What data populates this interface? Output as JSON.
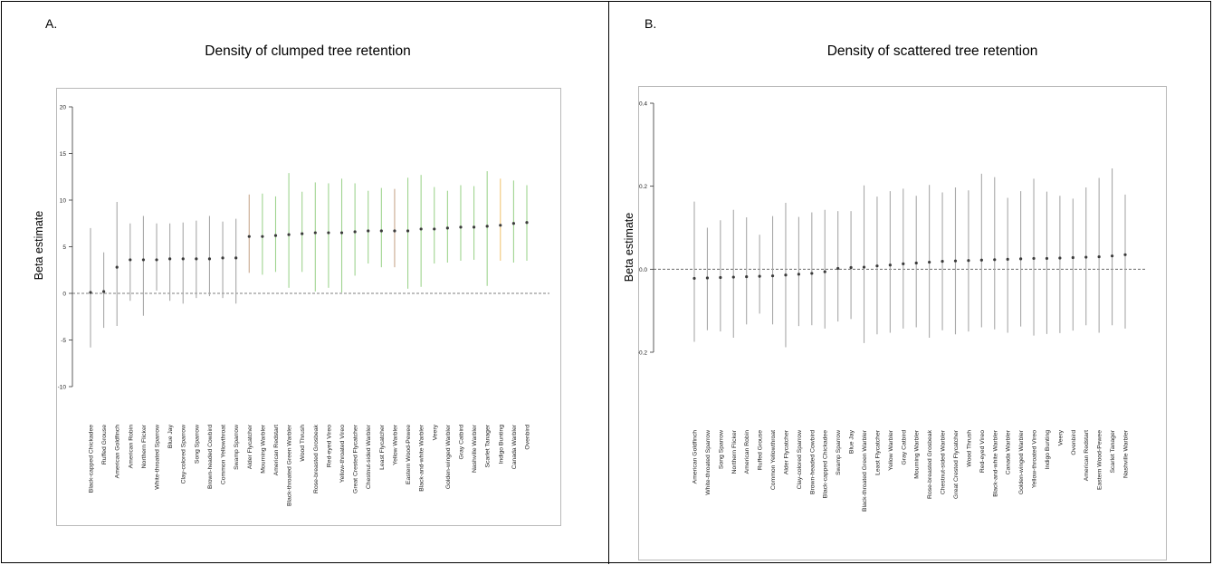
{
  "panels": [
    {
      "letter": "A.",
      "title": "Density of clumped tree retention",
      "chart_data": {
        "type": "scatter",
        "subtype": "coefficient point estimates with interval bars",
        "title": "Density of clumped tree retention",
        "xlabel": "",
        "ylabel": "Beta estimate",
        "ylim": [
          -10,
          20
        ],
        "yticks": [
          -10,
          -5,
          0,
          5,
          10,
          15,
          20
        ],
        "reference_line": 0,
        "grid": false,
        "points": [
          {
            "label": "Black-capped Chickadee",
            "est": 0.1,
            "lo": -5.8,
            "hi": 7.0,
            "color": "#a8a8a8"
          },
          {
            "label": "Ruffed Grouse",
            "est": 0.2,
            "lo": -3.7,
            "hi": 4.4,
            "color": "#a8a8a8"
          },
          {
            "label": "American Goldfinch",
            "est": 2.8,
            "lo": -3.5,
            "hi": 9.8,
            "color": "#a8a8a8"
          },
          {
            "label": "American Robin",
            "est": 3.6,
            "lo": -0.8,
            "hi": 7.5,
            "color": "#a8a8a8"
          },
          {
            "label": "Northern Flicker",
            "est": 3.6,
            "lo": -2.4,
            "hi": 8.3,
            "color": "#a8a8a8"
          },
          {
            "label": "White-throated Sparrow",
            "est": 3.6,
            "lo": 0.3,
            "hi": 7.5,
            "color": "#a8a8a8"
          },
          {
            "label": "Blue Jay",
            "est": 3.7,
            "lo": -0.8,
            "hi": 7.5,
            "color": "#a8a8a8"
          },
          {
            "label": "Clay-colored Sparrow",
            "est": 3.7,
            "lo": -1.1,
            "hi": 7.6,
            "color": "#a8a8a8"
          },
          {
            "label": "Song Sparrow",
            "est": 3.7,
            "lo": -0.5,
            "hi": 7.8,
            "color": "#a8a8a8"
          },
          {
            "label": "Brown-headed Cowbird",
            "est": 3.7,
            "lo": -0.3,
            "hi": 8.3,
            "color": "#a8a8a8"
          },
          {
            "label": "Common Yellowthroat",
            "est": 3.8,
            "lo": -0.5,
            "hi": 7.7,
            "color": "#a8a8a8"
          },
          {
            "label": "Swamp Sparrow",
            "est": 3.8,
            "lo": -1.1,
            "hi": 8.0,
            "color": "#a8a8a8"
          },
          {
            "label": "Alder Flycatcher",
            "est": 6.1,
            "lo": 2.2,
            "hi": 10.6,
            "color": "#c9a88f"
          },
          {
            "label": "Mourning Warbler",
            "est": 6.1,
            "lo": 2.0,
            "hi": 10.7,
            "color": "#9fd48f"
          },
          {
            "label": "American Redstart",
            "est": 6.2,
            "lo": 2.3,
            "hi": 10.4,
            "color": "#9fd48f"
          },
          {
            "label": "Black-throated Green Warbler",
            "est": 6.3,
            "lo": 0.6,
            "hi": 12.9,
            "color": "#9fd48f"
          },
          {
            "label": "Wood Thrush",
            "est": 6.4,
            "lo": 2.3,
            "hi": 10.9,
            "color": "#9fd48f"
          },
          {
            "label": "Rose-breasted Grosbeak",
            "est": 6.5,
            "lo": 0.2,
            "hi": 11.9,
            "color": "#9fd48f"
          },
          {
            "label": "Red-eyed Vireo",
            "est": 6.5,
            "lo": 0.6,
            "hi": 11.8,
            "color": "#9fd48f"
          },
          {
            "label": "Yellow-throated Vireo",
            "est": 6.5,
            "lo": 0.1,
            "hi": 12.3,
            "color": "#9fd48f"
          },
          {
            "label": "Great Crested Flycatcher",
            "est": 6.6,
            "lo": 1.9,
            "hi": 11.8,
            "color": "#9fd48f"
          },
          {
            "label": "Chestnut-sided Warbler",
            "est": 6.7,
            "lo": 3.2,
            "hi": 11.0,
            "color": "#9fd48f"
          },
          {
            "label": "Least Flycatcher",
            "est": 6.7,
            "lo": 2.8,
            "hi": 11.3,
            "color": "#9fd48f"
          },
          {
            "label": "Yellow Warbler",
            "est": 6.7,
            "lo": 2.8,
            "hi": 11.2,
            "color": "#c9a88f"
          },
          {
            "label": "Eastern Wood-Pewee",
            "est": 6.7,
            "lo": 0.5,
            "hi": 12.4,
            "color": "#9fd48f"
          },
          {
            "label": "Black-and-white Warbler",
            "est": 6.9,
            "lo": 0.7,
            "hi": 12.7,
            "color": "#9fd48f"
          },
          {
            "label": "Veery",
            "est": 6.9,
            "lo": 3.2,
            "hi": 11.4,
            "color": "#9fd48f"
          },
          {
            "label": "Golden-winged Warbler",
            "est": 7.0,
            "lo": 3.3,
            "hi": 11.0,
            "color": "#9fd48f"
          },
          {
            "label": "Gray Catbird",
            "est": 7.1,
            "lo": 3.5,
            "hi": 11.6,
            "color": "#9fd48f"
          },
          {
            "label": "Nashville Warbler",
            "est": 7.1,
            "lo": 3.6,
            "hi": 11.5,
            "color": "#9fd48f"
          },
          {
            "label": "Scarlet Tanager",
            "est": 7.2,
            "lo": 0.8,
            "hi": 13.1,
            "color": "#9fd48f"
          },
          {
            "label": "Indigo Bunting",
            "est": 7.3,
            "lo": 3.5,
            "hi": 12.3,
            "color": "#f2c777"
          },
          {
            "label": "Canada Warbler",
            "est": 7.5,
            "lo": 3.3,
            "hi": 12.1,
            "color": "#9fd48f"
          },
          {
            "label": "Ovenbird",
            "est": 7.6,
            "lo": 3.5,
            "hi": 11.6,
            "color": "#9fd48f"
          }
        ]
      }
    },
    {
      "letter": "B.",
      "title": "Density of scattered tree retention",
      "chart_data": {
        "type": "scatter",
        "subtype": "coefficient point estimates with interval bars",
        "title": "Density of scattered tree retention",
        "xlabel": "",
        "ylabel": "Beta estimate",
        "ylim": [
          -0.2,
          0.4
        ],
        "yticks": [
          -0.2,
          0.0,
          0.2,
          0.4
        ],
        "reference_line": 0,
        "grid": false,
        "points": [
          {
            "label": "American Goldfinch",
            "est": -0.022,
            "lo": -0.175,
            "hi": 0.163,
            "color": "#a8a8a8"
          },
          {
            "label": "White-throated Sparrow",
            "est": -0.021,
            "lo": -0.147,
            "hi": 0.1,
            "color": "#a8a8a8"
          },
          {
            "label": "Song Sparrow",
            "est": -0.02,
            "lo": -0.15,
            "hi": 0.118,
            "color": "#a8a8a8"
          },
          {
            "label": "Northern Flicker",
            "est": -0.019,
            "lo": -0.165,
            "hi": 0.143,
            "color": "#a8a8a8"
          },
          {
            "label": "American Robin",
            "est": -0.018,
            "lo": -0.133,
            "hi": 0.125,
            "color": "#a8a8a8"
          },
          {
            "label": "Ruffed Grouse",
            "est": -0.017,
            "lo": -0.107,
            "hi": 0.083,
            "color": "#a8a8a8"
          },
          {
            "label": "Common Yellowthroat",
            "est": -0.016,
            "lo": -0.133,
            "hi": 0.128,
            "color": "#a8a8a8"
          },
          {
            "label": "Alder Flycatcher",
            "est": -0.014,
            "lo": -0.188,
            "hi": 0.16,
            "color": "#a8a8a8"
          },
          {
            "label": "Clay-colored Sparrow",
            "est": -0.012,
            "lo": -0.137,
            "hi": 0.126,
            "color": "#a8a8a8"
          },
          {
            "label": "Brown-headed Cowbird",
            "est": -0.01,
            "lo": -0.135,
            "hi": 0.137,
            "color": "#a8a8a8"
          },
          {
            "label": "Black-capped Chickadee",
            "est": -0.006,
            "lo": -0.143,
            "hi": 0.143,
            "color": "#a8a8a8"
          },
          {
            "label": "Swamp Sparrow",
            "est": 0.002,
            "lo": -0.126,
            "hi": 0.14,
            "color": "#a8a8a8"
          },
          {
            "label": "Blue Jay",
            "est": 0.004,
            "lo": -0.12,
            "hi": 0.14,
            "color": "#a8a8a8"
          },
          {
            "label": "Black-throated Green Warbler",
            "est": 0.005,
            "lo": -0.178,
            "hi": 0.202,
            "color": "#a8a8a8"
          },
          {
            "label": "Least Flycatcher",
            "est": 0.008,
            "lo": -0.157,
            "hi": 0.175,
            "color": "#a8a8a8"
          },
          {
            "label": "Yellow Warbler",
            "est": 0.01,
            "lo": -0.153,
            "hi": 0.188,
            "color": "#a8a8a8"
          },
          {
            "label": "Gray Catbird",
            "est": 0.013,
            "lo": -0.143,
            "hi": 0.194,
            "color": "#a8a8a8"
          },
          {
            "label": "Mourning Warbler",
            "est": 0.015,
            "lo": -0.14,
            "hi": 0.177,
            "color": "#a8a8a8"
          },
          {
            "label": "Rose-breasted Grosbeak",
            "est": 0.017,
            "lo": -0.165,
            "hi": 0.203,
            "color": "#a8a8a8"
          },
          {
            "label": "Chestnut-sided Warbler",
            "est": 0.019,
            "lo": -0.147,
            "hi": 0.185,
            "color": "#a8a8a8"
          },
          {
            "label": "Great Crested Flycatcher",
            "est": 0.02,
            "lo": -0.157,
            "hi": 0.197,
            "color": "#a8a8a8"
          },
          {
            "label": "Wood Thrush",
            "est": 0.021,
            "lo": -0.15,
            "hi": 0.19,
            "color": "#a8a8a8"
          },
          {
            "label": "Red-eyed Vireo",
            "est": 0.022,
            "lo": -0.14,
            "hi": 0.23,
            "color": "#a8a8a8"
          },
          {
            "label": "Black-and-white Warbler",
            "est": 0.023,
            "lo": -0.145,
            "hi": 0.222,
            "color": "#a8a8a8"
          },
          {
            "label": "Canada Warbler",
            "est": 0.024,
            "lo": -0.153,
            "hi": 0.172,
            "color": "#a8a8a8"
          },
          {
            "label": "Golden-winged Warbler",
            "est": 0.025,
            "lo": -0.138,
            "hi": 0.188,
            "color": "#a8a8a8"
          },
          {
            "label": "Yellow-throated Vireo",
            "est": 0.026,
            "lo": -0.16,
            "hi": 0.218,
            "color": "#a8a8a8"
          },
          {
            "label": "Indigo Bunting",
            "est": 0.026,
            "lo": -0.156,
            "hi": 0.187,
            "color": "#a8a8a8"
          },
          {
            "label": "Veery",
            "est": 0.027,
            "lo": -0.154,
            "hi": 0.177,
            "color": "#a8a8a8"
          },
          {
            "label": "Ovenbird",
            "est": 0.028,
            "lo": -0.148,
            "hi": 0.17,
            "color": "#a8a8a8"
          },
          {
            "label": "American Redstart",
            "est": 0.029,
            "lo": -0.135,
            "hi": 0.197,
            "color": "#a8a8a8"
          },
          {
            "label": "Eastern Wood-Pewee",
            "est": 0.03,
            "lo": -0.153,
            "hi": 0.22,
            "color": "#a8a8a8"
          },
          {
            "label": "Scarlet Tanager",
            "est": 0.032,
            "lo": -0.135,
            "hi": 0.243,
            "color": "#a8a8a8"
          },
          {
            "label": "Nashville Warbler",
            "est": 0.035,
            "lo": -0.143,
            "hi": 0.18,
            "color": "#a8a8a8"
          }
        ]
      }
    }
  ]
}
